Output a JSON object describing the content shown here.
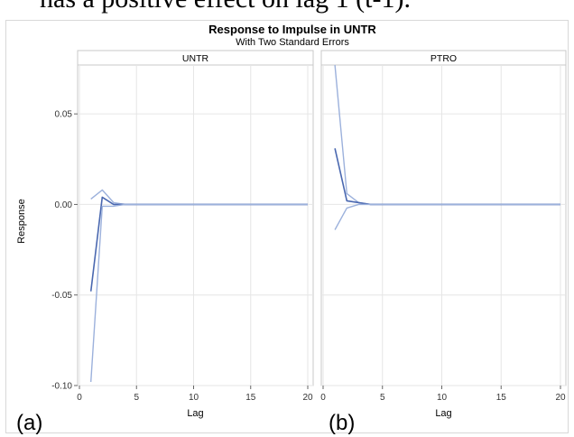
{
  "document": {
    "text_above": "has a positive effect on lag 1 (t-1)."
  },
  "chart_data": {
    "type": "line",
    "title": "Response to Impulse in UNTR",
    "subtitle": "With Two Standard Errors",
    "xlabel": "Lag",
    "ylabel": "Response",
    "xlim": [
      0,
      20
    ],
    "ylim": [
      -0.1,
      0.077
    ],
    "xticks": [
      "0",
      "5",
      "10",
      "15",
      "20"
    ],
    "yticks": [
      "-0.10",
      "-0.05",
      "0.00",
      "0.05"
    ],
    "grid": true,
    "colors": {
      "response": "#4a68b0",
      "bands": "#9cb1dc"
    },
    "panels": [
      {
        "header": "UNTR",
        "tag": "(a)",
        "series": [
          {
            "role": "upper",
            "x": [
              1,
              2,
              3,
              4,
              5,
              6,
              7,
              8,
              9,
              10,
              11,
              12,
              13,
              14,
              15,
              16,
              17,
              18,
              19,
              20
            ],
            "y": [
              0.003,
              0.008,
              0.001,
              0,
              0,
              0,
              0,
              0,
              0,
              0,
              0,
              0,
              0,
              0,
              0,
              0,
              0,
              0,
              0,
              0
            ]
          },
          {
            "role": "response",
            "x": [
              1,
              2,
              3,
              4,
              5,
              6,
              7,
              8,
              9,
              10,
              11,
              12,
              13,
              14,
              15,
              16,
              17,
              18,
              19,
              20
            ],
            "y": [
              -0.048,
              0.004,
              0,
              0,
              0,
              0,
              0,
              0,
              0,
              0,
              0,
              0,
              0,
              0,
              0,
              0,
              0,
              0,
              0,
              0
            ]
          },
          {
            "role": "lower",
            "x": [
              1,
              2,
              3,
              4,
              5,
              6,
              7,
              8,
              9,
              10,
              11,
              12,
              13,
              14,
              15,
              16,
              17,
              18,
              19,
              20
            ],
            "y": [
              -0.098,
              -0.001,
              -0.001,
              0,
              0,
              0,
              0,
              0,
              0,
              0,
              0,
              0,
              0,
              0,
              0,
              0,
              0,
              0,
              0,
              0
            ]
          }
        ]
      },
      {
        "header": "PTRO",
        "tag": "(b)",
        "series": [
          {
            "role": "upper",
            "x": [
              1,
              2,
              3,
              4,
              5,
              6,
              7,
              8,
              9,
              10,
              11,
              12,
              13,
              14,
              15,
              16,
              17,
              18,
              19,
              20
            ],
            "y": [
              0.077,
              0.006,
              0.001,
              0,
              0,
              0,
              0,
              0,
              0,
              0,
              0,
              0,
              0,
              0,
              0,
              0,
              0,
              0,
              0,
              0
            ]
          },
          {
            "role": "response",
            "x": [
              1,
              2,
              3,
              4,
              5,
              6,
              7,
              8,
              9,
              10,
              11,
              12,
              13,
              14,
              15,
              16,
              17,
              18,
              19,
              20
            ],
            "y": [
              0.031,
              0.002,
              0.001,
              0,
              0,
              0,
              0,
              0,
              0,
              0,
              0,
              0,
              0,
              0,
              0,
              0,
              0,
              0,
              0,
              0
            ]
          },
          {
            "role": "lower",
            "x": [
              1,
              2,
              3,
              4,
              5,
              6,
              7,
              8,
              9,
              10,
              11,
              12,
              13,
              14,
              15,
              16,
              17,
              18,
              19,
              20
            ],
            "y": [
              -0.014,
              -0.002,
              0,
              0,
              0,
              0,
              0,
              0,
              0,
              0,
              0,
              0,
              0,
              0,
              0,
              0,
              0,
              0,
              0,
              0
            ]
          }
        ]
      }
    ]
  }
}
